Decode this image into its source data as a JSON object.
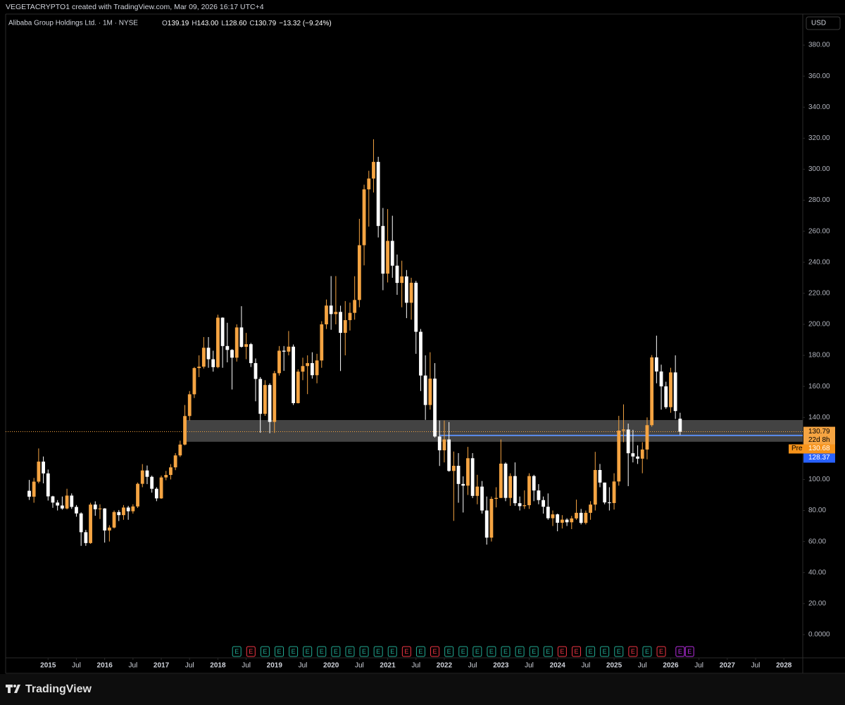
{
  "header": "VEGETACRYPTO1 created with TradingView.com, Mar 09, 2026 16:17 UTC+4",
  "footer": "TradingView",
  "chart_data": {
    "type": "candlestick",
    "legend": {
      "title": "Alibaba Group Holdings Ltd. · 1M · NYSE",
      "items": [
        {
          "key": "O",
          "value": "139.19"
        },
        {
          "key": "H",
          "value": "143.00"
        },
        {
          "key": "L",
          "value": "128.60"
        },
        {
          "key": "C",
          "value": "130.79"
        }
      ],
      "change": "−13.32 (−9.24%)"
    },
    "currency": "USD",
    "up_color": "#f5a442",
    "down_color": "#ffffff",
    "x": [
      "2014-09",
      "2014-10",
      "2014-11",
      "2014-12",
      "2015-01",
      "2015-02",
      "2015-03",
      "2015-04",
      "2015-05",
      "2015-06",
      "2015-07",
      "2015-08",
      "2015-09",
      "2015-10",
      "2015-11",
      "2015-12",
      "2016-01",
      "2016-02",
      "2016-03",
      "2016-04",
      "2016-05",
      "2016-06",
      "2016-07",
      "2016-08",
      "2016-09",
      "2016-10",
      "2016-11",
      "2016-12",
      "2017-01",
      "2017-02",
      "2017-03",
      "2017-04",
      "2017-05",
      "2017-06",
      "2017-07",
      "2017-08",
      "2017-09",
      "2017-10",
      "2017-11",
      "2017-12",
      "2018-01",
      "2018-02",
      "2018-03",
      "2018-04",
      "2018-05",
      "2018-06",
      "2018-07",
      "2018-08",
      "2018-09",
      "2018-10",
      "2018-11",
      "2018-12",
      "2019-01",
      "2019-02",
      "2019-03",
      "2019-04",
      "2019-05",
      "2019-06",
      "2019-07",
      "2019-08",
      "2019-09",
      "2019-10",
      "2019-11",
      "2019-12",
      "2020-01",
      "2020-02",
      "2020-03",
      "2020-04",
      "2020-05",
      "2020-06",
      "2020-07",
      "2020-08",
      "2020-09",
      "2020-10",
      "2020-11",
      "2020-12",
      "2021-01",
      "2021-02",
      "2021-03",
      "2021-04",
      "2021-05",
      "2021-06",
      "2021-07",
      "2021-08",
      "2021-09",
      "2021-10",
      "2021-11",
      "2021-12",
      "2022-01",
      "2022-02",
      "2022-03",
      "2022-04",
      "2022-05",
      "2022-06",
      "2022-07",
      "2022-08",
      "2022-09",
      "2022-10",
      "2022-11",
      "2022-12",
      "2023-01",
      "2023-02",
      "2023-03",
      "2023-04",
      "2023-05",
      "2023-06",
      "2023-07",
      "2023-08",
      "2023-09",
      "2023-10",
      "2023-11",
      "2023-12",
      "2024-01",
      "2024-02",
      "2024-03",
      "2024-04",
      "2024-05",
      "2024-06",
      "2024-07",
      "2024-08",
      "2024-09",
      "2024-10",
      "2024-11",
      "2024-12",
      "2025-01",
      "2025-02",
      "2025-03",
      "2025-04",
      "2025-05",
      "2025-06",
      "2025-07",
      "2025-08",
      "2025-09",
      "2025-10",
      "2025-11",
      "2025-12",
      "2026-01",
      "2026-02",
      "2026-03"
    ],
    "open": [
      92.7,
      88.9,
      98.6,
      111.5,
      103.9,
      89.1,
      85.1,
      83.2,
      81.3,
      89.6,
      82.3,
      78.1,
      66.0,
      59.0,
      83.8,
      80.8,
      81.3,
      67.1,
      69.0,
      79.0,
      77.0,
      81.9,
      79.5,
      82.6,
      97.2,
      105.8,
      101.7,
      94.0,
      87.8,
      101.3,
      102.9,
      107.8,
      115.5,
      122.5,
      140.9,
      154.9,
      171.8,
      172.7,
      184.9,
      177.5,
      172.4,
      204.3,
      186.0,
      183.5,
      178.5,
      198.0,
      185.5,
      187.2,
      175.0,
      164.8,
      142.3,
      160.9,
      137.1,
      168.5,
      183.0,
      182.4,
      185.6,
      149.2,
      169.5,
      173.1,
      175.0,
      167.2,
      176.7,
      200.0,
      212.1,
      206.6,
      208.0,
      194.5,
      202.7,
      207.4,
      215.7,
      251.0,
      287.0,
      294.0,
      304.7,
      263.4,
      232.7,
      253.8,
      237.8,
      226.7,
      230.9,
      213.9,
      226.8,
      195.2,
      167.0,
      148.0,
      165.0,
      127.7,
      118.8,
      125.8,
      105.5,
      108.8,
      97.1,
      96.0,
      113.7,
      89.4,
      95.4,
      80.0,
      62.5,
      87.5,
      88.1,
      110.2,
      88.1,
      102.2,
      84.7,
      82.8,
      83.4,
      102.2,
      92.9,
      86.7,
      82.4,
      75.0,
      77.5,
      72.1,
      74.1,
      72.4,
      74.9,
      78.5,
      72.0,
      78.5,
      83.8,
      106.1,
      98.0,
      85.2,
      84.8,
      98.7,
      131.5,
      132.2,
      116.9,
      114.8,
      113.4,
      119.3,
      135.0,
      178.7,
      169.6,
      160.0,
      146.6,
      169.0,
      139.19
    ],
    "high": [
      99.7,
      101.0,
      120.0,
      114.8,
      106.4,
      89.5,
      86.7,
      89.0,
      94.0,
      91.0,
      83.5,
      78.8,
      67.5,
      85.0,
      85.9,
      84.0,
      81.5,
      70.5,
      80.0,
      80.3,
      83.5,
      83.0,
      84.0,
      98.0,
      109.9,
      109.0,
      102.5,
      95.0,
      102.5,
      105.5,
      109.9,
      117.0,
      125.0,
      148.0,
      157.0,
      172.5,
      180.0,
      191.8,
      191.8,
      183.0,
      206.2,
      204.5,
      201.0,
      184.0,
      200.0,
      211.7,
      194.5,
      188.0,
      178.0,
      166.0,
      164.0,
      162.0,
      170.0,
      186.0,
      186.0,
      195.7,
      187.0,
      171.0,
      178.5,
      180.0,
      182.0,
      181.0,
      202.0,
      216.0,
      231.1,
      231.1,
      212.0,
      215.0,
      214.0,
      231.0,
      268.0,
      290.0,
      299.0,
      319.3,
      308.0,
      275.0,
      274.3,
      270.0,
      245.0,
      241.0,
      235.0,
      230.0,
      228.0,
      197.0,
      180.0,
      182.0,
      175.0,
      138.0,
      138.0,
      137.0,
      118.0,
      117.0,
      102.0,
      121.0,
      117.0,
      103.0,
      99.0,
      89.0,
      89.0,
      95.0,
      125.8,
      111.0,
      104.0,
      111.0,
      89.0,
      93.0,
      104.0,
      103.0,
      97.0,
      89.0,
      91.0,
      80.0,
      78.0,
      77.0,
      75.0,
      76.5,
      87.0,
      81.0,
      80.0,
      86.0,
      117.8,
      110.0,
      98.0,
      95.0,
      104.0,
      141.0,
      148.4,
      136.0,
      132.0,
      122.0,
      124.0,
      140.0,
      180.2,
      192.7,
      174.0,
      163.0,
      172.0,
      180.0,
      143.0
    ],
    "low": [
      86.8,
      85.0,
      97.5,
      97.5,
      86.4,
      81.7,
      80.0,
      80.5,
      80.7,
      81.0,
      76.0,
      57.2,
      57.2,
      58.5,
      76.6,
      74.5,
      59.3,
      60.0,
      68.4,
      73.2,
      74.0,
      74.0,
      78.0,
      81.6,
      95.0,
      97.0,
      91.5,
      86.0,
      87.5,
      99.5,
      100.0,
      106.0,
      114.5,
      122.0,
      138.0,
      152.5,
      166.0,
      171.5,
      172.0,
      169.5,
      171.7,
      172.0,
      175.5,
      158.0,
      176.0,
      185.0,
      177.5,
      172.5,
      150.4,
      130.1,
      141.0,
      129.8,
      130.0,
      167.0,
      170.0,
      180.0,
      148.0,
      149.0,
      164.0,
      155.0,
      165.0,
      162.0,
      172.0,
      197.0,
      196.5,
      200.0,
      169.9,
      180.0,
      196.0,
      203.0,
      211.0,
      238.0,
      263.0,
      285.0,
      256.0,
      222.0,
      227.0,
      230.0,
      219.0,
      211.0,
      204.0,
      203.0,
      181.0,
      157.0,
      138.4,
      145.0,
      127.0,
      108.7,
      111.0,
      105.0,
      73.3,
      85.0,
      78.7,
      90.0,
      88.0,
      84.0,
      78.0,
      58.0,
      60.0,
      82.0,
      88.0,
      86.0,
      83.0,
      83.0,
      80.0,
      81.0,
      81.0,
      86.0,
      84.0,
      78.0,
      74.0,
      70.0,
      66.6,
      68.4,
      70.0,
      68.0,
      74.0,
      71.0,
      71.0,
      74.0,
      80.0,
      95.0,
      84.0,
      80.0,
      80.6,
      96.0,
      124.0,
      95.7,
      111.0,
      110.0,
      104.0,
      113.0,
      134.0,
      162.0,
      145.0,
      145.5,
      143.0,
      139.0,
      128.6
    ],
    "close": [
      88.9,
      98.6,
      111.5,
      103.9,
      89.1,
      85.1,
      83.2,
      81.3,
      89.6,
      82.3,
      78.1,
      66.0,
      59.0,
      83.8,
      80.8,
      81.3,
      67.1,
      69.0,
      79.0,
      77.0,
      81.9,
      79.5,
      82.6,
      97.2,
      105.8,
      101.7,
      94.0,
      87.8,
      101.3,
      102.9,
      107.8,
      115.5,
      122.5,
      140.9,
      154.9,
      171.8,
      172.7,
      184.9,
      177.5,
      172.4,
      204.3,
      186.0,
      183.5,
      178.5,
      198.0,
      185.5,
      187.2,
      175.0,
      164.8,
      142.3,
      160.9,
      137.1,
      168.5,
      183.0,
      182.4,
      185.6,
      149.2,
      169.5,
      173.1,
      175.0,
      167.2,
      176.7,
      200.0,
      212.1,
      206.6,
      208.0,
      194.5,
      202.7,
      207.4,
      215.7,
      251.0,
      287.0,
      294.0,
      304.7,
      263.4,
      232.7,
      253.8,
      237.8,
      226.7,
      230.9,
      213.9,
      226.8,
      195.2,
      167.0,
      148.0,
      165.0,
      127.7,
      118.8,
      125.8,
      105.5,
      108.8,
      97.1,
      96.0,
      113.7,
      89.4,
      95.4,
      80.0,
      62.5,
      87.5,
      88.1,
      110.2,
      88.1,
      102.2,
      84.7,
      82.8,
      83.4,
      102.2,
      92.9,
      86.7,
      82.4,
      75.0,
      77.5,
      72.1,
      74.1,
      72.4,
      74.9,
      78.5,
      72.0,
      78.5,
      83.8,
      106.1,
      98.0,
      85.2,
      84.8,
      98.7,
      131.5,
      132.2,
      116.9,
      114.8,
      113.4,
      119.3,
      135.0,
      178.7,
      169.6,
      160.0,
      146.6,
      169.0,
      144.11,
      130.79
    ],
    "xlim": [
      "2014-04",
      "2028-05"
    ],
    "xticks": [
      {
        "value": "2015-01",
        "label": "2015"
      },
      {
        "value": "2015-07",
        "label": "Jul"
      },
      {
        "value": "2016-01",
        "label": "2016"
      },
      {
        "value": "2016-07",
        "label": "Jul"
      },
      {
        "value": "2017-01",
        "label": "2017"
      },
      {
        "value": "2017-07",
        "label": "Jul"
      },
      {
        "value": "2018-01",
        "label": "2018"
      },
      {
        "value": "2018-07",
        "label": "Jul"
      },
      {
        "value": "2019-01",
        "label": "2019"
      },
      {
        "value": "2019-07",
        "label": "Jul"
      },
      {
        "value": "2020-01",
        "label": "2020"
      },
      {
        "value": "2020-07",
        "label": "Jul"
      },
      {
        "value": "2021-01",
        "label": "2021"
      },
      {
        "value": "2021-07",
        "label": "Jul"
      },
      {
        "value": "2022-01",
        "label": "2022"
      },
      {
        "value": "2022-07",
        "label": "Jul"
      },
      {
        "value": "2023-01",
        "label": "2023"
      },
      {
        "value": "2023-07",
        "label": "Jul"
      },
      {
        "value": "2024-01",
        "label": "2024"
      },
      {
        "value": "2024-07",
        "label": "Jul"
      },
      {
        "value": "2025-01",
        "label": "2025"
      },
      {
        "value": "2025-07",
        "label": "Jul"
      },
      {
        "value": "2026-01",
        "label": "2026"
      },
      {
        "value": "2026-07",
        "label": "Jul"
      },
      {
        "value": "2027-01",
        "label": "2027"
      },
      {
        "value": "2027-07",
        "label": "Jul"
      },
      {
        "value": "2028-01",
        "label": "2028"
      }
    ],
    "ylim": [
      -15,
      400
    ],
    "yticks": [
      {
        "value": 0,
        "label": "0.0000"
      },
      {
        "value": 20,
        "label": "20.00"
      },
      {
        "value": 40,
        "label": "40.00"
      },
      {
        "value": 60,
        "label": "60.00"
      },
      {
        "value": 80,
        "label": "80.00"
      },
      {
        "value": 100,
        "label": "100.00"
      },
      {
        "value": 120,
        "label": "120.00"
      },
      {
        "value": 140,
        "label": "140.00"
      },
      {
        "value": 160,
        "label": "160.00"
      },
      {
        "value": 180,
        "label": "180.00"
      },
      {
        "value": 200,
        "label": "200.00"
      },
      {
        "value": 220,
        "label": "220.00"
      },
      {
        "value": 240,
        "label": "240.00"
      },
      {
        "value": 260,
        "label": "260.00"
      },
      {
        "value": 280,
        "label": "280.00"
      },
      {
        "value": 300,
        "label": "300.00"
      },
      {
        "value": 320,
        "label": "320.00"
      },
      {
        "value": 340,
        "label": "340.00"
      },
      {
        "value": 360,
        "label": "360.00"
      },
      {
        "value": 380,
        "label": "380.00"
      }
    ],
    "zone": {
      "from": 124.3,
      "to": 138.3,
      "start": "2017-06",
      "color": "#5a5a5a"
    },
    "hline": {
      "price": 128.37,
      "start": "2021-12",
      "color": "#5b8def"
    },
    "last_price": 130.79,
    "countdown": "22d 8h",
    "premarket": {
      "label": "Pre",
      "price": 130.68
    },
    "earnings": {
      "label": "E",
      "dates": [
        "2018-05",
        "2018-08",
        "2018-11",
        "2019-02",
        "2019-05",
        "2019-08",
        "2019-11",
        "2020-02",
        "2020-05",
        "2020-08",
        "2020-11",
        "2021-02",
        "2021-05",
        "2021-08",
        "2021-11",
        "2022-02",
        "2022-05",
        "2022-08",
        "2022-11",
        "2023-02",
        "2023-05",
        "2023-08",
        "2023-11",
        "2024-02",
        "2024-05",
        "2024-08",
        "2024-11",
        "2025-02",
        "2025-05",
        "2025-08",
        "2025-11",
        "2026-03",
        "2026-05"
      ],
      "colors": [
        "#22ab94",
        "#f23645",
        "#22ab94",
        "#22ab94",
        "#22ab94",
        "#22ab94",
        "#22ab94",
        "#22ab94",
        "#22ab94",
        "#22ab94",
        "#22ab94",
        "#22ab94",
        "#f23645",
        "#22ab94",
        "#f23645",
        "#22ab94",
        "#22ab94",
        "#22ab94",
        "#22ab94",
        "#22ab94",
        "#22ab94",
        "#22ab94",
        "#22ab94",
        "#f23645",
        "#f23645",
        "#22ab94",
        "#22ab94",
        "#22ab94",
        "#f23645",
        "#22ab94",
        "#f23645",
        "#b62ee0",
        "#b62ee0"
      ]
    }
  }
}
